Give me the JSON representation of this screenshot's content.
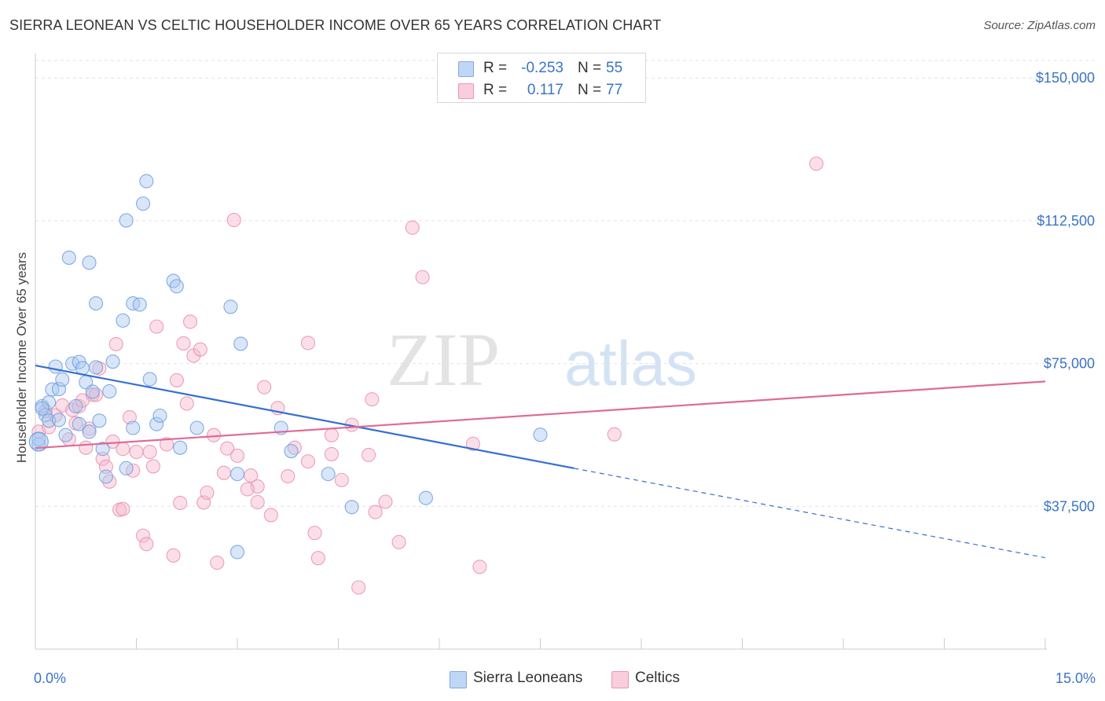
{
  "header": {
    "title": "SIERRA LEONEAN VS CELTIC HOUSEHOLDER INCOME OVER 65 YEARS CORRELATION CHART",
    "source": "Source: ZipAtlas.com"
  },
  "watermark": {
    "part1": "ZIP",
    "part2": "atlas"
  },
  "stats": {
    "rows": [
      {
        "r_label": "R =",
        "r_value": "-0.253",
        "n_label": "N =",
        "n_value": "55",
        "color": "#a9c8f0"
      },
      {
        "r_label": "R =",
        "r_value": "0.117",
        "n_label": "N =",
        "n_value": "77",
        "color": "#f6b9cc"
      }
    ]
  },
  "legend": {
    "items": [
      {
        "label": "Sierra Leoneans",
        "color": "#a9c8f0"
      },
      {
        "label": "Celtics",
        "color": "#f6b9cc"
      }
    ]
  },
  "chart_data": {
    "type": "scatter",
    "title": "SIERRA LEONEAN VS CELTIC HOUSEHOLDER INCOME OVER 65 YEARS CORRELATION CHART",
    "xlabel": "",
    "ylabel": "Householder Income Over 65 years",
    "xlim": [
      0,
      15
    ],
    "ylim": [
      0,
      155000
    ],
    "x_tick_labels": [
      "0.0%",
      "15.0%"
    ],
    "y_ticks": [
      37500,
      75000,
      112500,
      150000
    ],
    "y_tick_labels": [
      "$37,500",
      "$75,000",
      "$112,500",
      "$150,000"
    ],
    "grid": true,
    "legend_position": "bottom",
    "series": [
      {
        "name": "Sierra Leoneans",
        "color": "#3370d0",
        "fill": "#a9c8f0",
        "trend": {
          "x": [
            0,
            8
          ],
          "y": [
            74500,
            47500
          ],
          "dashed_to": [
            15,
            24000
          ]
        },
        "points": [
          [
            0.05,
            53800
          ],
          [
            0.1,
            63800
          ],
          [
            0.15,
            61500
          ],
          [
            0.2,
            60000
          ],
          [
            0.2,
            64800
          ],
          [
            0.25,
            68200
          ],
          [
            0.3,
            74200
          ],
          [
            0.35,
            68300
          ],
          [
            0.4,
            70800
          ],
          [
            0.45,
            56200
          ],
          [
            0.5,
            102800
          ],
          [
            0.55,
            75000
          ],
          [
            0.6,
            63800
          ],
          [
            0.65,
            59100
          ],
          [
            0.65,
            75400
          ],
          [
            0.7,
            73800
          ],
          [
            0.75,
            70100
          ],
          [
            0.8,
            57100
          ],
          [
            0.8,
            101500
          ],
          [
            0.85,
            67600
          ],
          [
            0.9,
            90800
          ],
          [
            0.95,
            60000
          ],
          [
            1.0,
            52600
          ],
          [
            1.05,
            45300
          ],
          [
            1.1,
            67700
          ],
          [
            1.15,
            75500
          ],
          [
            1.3,
            86300
          ],
          [
            1.35,
            47500
          ],
          [
            1.35,
            112600
          ],
          [
            1.45,
            90800
          ],
          [
            1.45,
            58100
          ],
          [
            1.55,
            90500
          ],
          [
            1.6,
            117000
          ],
          [
            1.65,
            122900
          ],
          [
            1.7,
            70900
          ],
          [
            1.8,
            59100
          ],
          [
            1.85,
            61300
          ],
          [
            2.05,
            96700
          ],
          [
            2.1,
            95300
          ],
          [
            2.15,
            52900
          ],
          [
            2.4,
            58100
          ],
          [
            2.9,
            89900
          ],
          [
            3.0,
            46000
          ],
          [
            3.0,
            25500
          ],
          [
            3.05,
            80200
          ],
          [
            3.65,
            58100
          ],
          [
            3.8,
            52000
          ],
          [
            4.35,
            46000
          ],
          [
            4.7,
            37300
          ],
          [
            5.8,
            39700
          ],
          [
            7.5,
            56300
          ],
          [
            0.05,
            55100
          ],
          [
            0.1,
            63200
          ],
          [
            0.35,
            60200
          ],
          [
            0.9,
            74000
          ]
        ]
      },
      {
        "name": "Celtics",
        "color": "#e06a95",
        "fill": "#f6b9cc",
        "trend": {
          "x": [
            0,
            15
          ],
          "y": [
            52800,
            70300
          ]
        },
        "points": [
          [
            0.05,
            57100
          ],
          [
            0.15,
            62500
          ],
          [
            0.3,
            61400
          ],
          [
            0.4,
            64000
          ],
          [
            0.5,
            55100
          ],
          [
            0.55,
            62800
          ],
          [
            0.6,
            59300
          ],
          [
            0.65,
            63800
          ],
          [
            0.7,
            65300
          ],
          [
            0.75,
            52900
          ],
          [
            0.8,
            57900
          ],
          [
            0.85,
            66800
          ],
          [
            0.9,
            66800
          ],
          [
            0.95,
            73700
          ],
          [
            1.0,
            50000
          ],
          [
            1.05,
            47900
          ],
          [
            1.1,
            44000
          ],
          [
            1.15,
            54500
          ],
          [
            1.2,
            80100
          ],
          [
            1.25,
            36600
          ],
          [
            1.3,
            36800
          ],
          [
            1.4,
            60900
          ],
          [
            1.45,
            46900
          ],
          [
            1.5,
            51800
          ],
          [
            1.6,
            29800
          ],
          [
            1.65,
            27600
          ],
          [
            1.7,
            51800
          ],
          [
            1.75,
            48000
          ],
          [
            1.8,
            84700
          ],
          [
            1.95,
            53800
          ],
          [
            2.05,
            24600
          ],
          [
            2.1,
            70600
          ],
          [
            2.15,
            38400
          ],
          [
            2.2,
            80300
          ],
          [
            2.25,
            64500
          ],
          [
            2.3,
            86000
          ],
          [
            2.35,
            77100
          ],
          [
            2.45,
            78700
          ],
          [
            2.5,
            38500
          ],
          [
            2.55,
            41100
          ],
          [
            2.65,
            56200
          ],
          [
            2.7,
            22700
          ],
          [
            2.8,
            46300
          ],
          [
            2.85,
            52700
          ],
          [
            2.95,
            112700
          ],
          [
            3.0,
            50800
          ],
          [
            3.2,
            45600
          ],
          [
            3.3,
            42700
          ],
          [
            3.3,
            38600
          ],
          [
            3.4,
            68800
          ],
          [
            3.5,
            35200
          ],
          [
            3.6,
            63300
          ],
          [
            3.85,
            52900
          ],
          [
            4.05,
            80400
          ],
          [
            4.05,
            49300
          ],
          [
            4.15,
            30500
          ],
          [
            4.2,
            23900
          ],
          [
            4.4,
            51200
          ],
          [
            4.4,
            56200
          ],
          [
            4.55,
            44400
          ],
          [
            4.7,
            58900
          ],
          [
            4.8,
            16200
          ],
          [
            4.95,
            51000
          ],
          [
            5.0,
            65600
          ],
          [
            5.05,
            36000
          ],
          [
            5.2,
            38700
          ],
          [
            5.4,
            28100
          ],
          [
            5.6,
            110700
          ],
          [
            5.75,
            97700
          ],
          [
            6.5,
            53900
          ],
          [
            6.6,
            21600
          ],
          [
            8.6,
            56400
          ],
          [
            11.6,
            127500
          ],
          [
            0.2,
            58300
          ],
          [
            1.3,
            52600
          ],
          [
            3.15,
            42000
          ],
          [
            3.75,
            45400
          ]
        ]
      }
    ]
  }
}
